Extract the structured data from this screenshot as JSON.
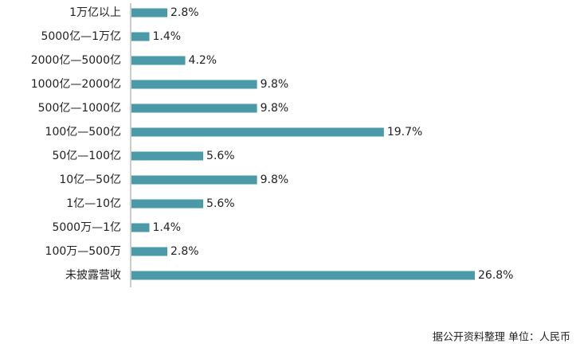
{
  "chart_data": {
    "type": "barh",
    "categories": [
      "1万亿以上",
      "5000亿—1万亿",
      "2000亿—5000亿",
      "1000亿—2000亿",
      "500亿—1000亿",
      "100亿—500亿",
      "50亿—100亿",
      "10亿—50亿",
      "1亿—10亿",
      "5000万—1亿",
      "100万—500万",
      "未披露营收"
    ],
    "values": [
      2.8,
      1.4,
      4.2,
      9.8,
      9.8,
      19.7,
      5.6,
      9.8,
      5.6,
      1.4,
      2.8,
      26.8
    ],
    "value_labels": [
      "2.8%",
      "1.4%",
      "4.2%",
      "9.8%",
      "9.8%",
      "19.7%",
      "5.6%",
      "9.8%",
      "5.6%",
      "1.4%",
      "2.8%",
      "26.8%"
    ],
    "color": "#4a9aa8",
    "note": "据公开资料整理 单位：人民币"
  }
}
